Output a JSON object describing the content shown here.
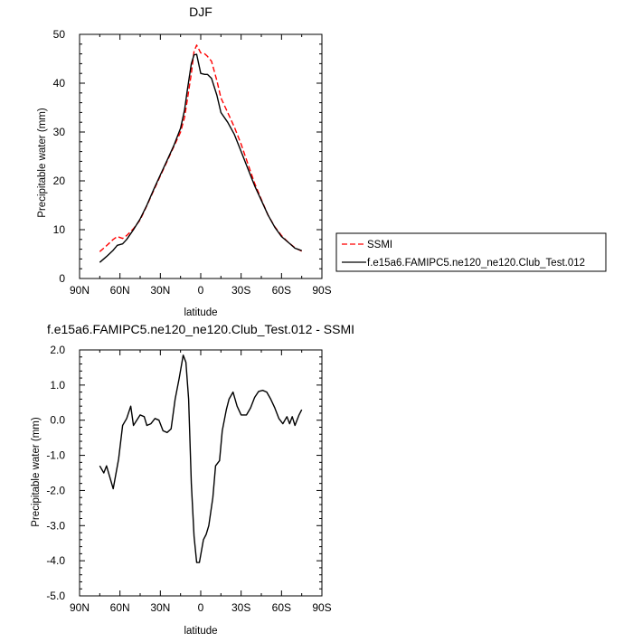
{
  "chart_data": [
    {
      "type": "line",
      "title": "DJF",
      "xlabel": "latitude",
      "ylabel": "Precipitable water (mm)",
      "xlim": [
        90,
        -90
      ],
      "ylim": [
        0,
        50
      ],
      "x_ticks": [
        90,
        60,
        30,
        0,
        -30,
        -60,
        -90
      ],
      "x_tick_labels": [
        "90N",
        "60N",
        "30N",
        "0",
        "30S",
        "60S",
        "90S"
      ],
      "y_ticks": [
        0,
        10,
        20,
        30,
        40,
        50
      ],
      "y_tick_labels": [
        "0",
        "10",
        "20",
        "30",
        "40",
        "50"
      ],
      "legend": {
        "placement": "outside-right",
        "entries": [
          {
            "label": "SSMI",
            "color": "#ff0000",
            "style": "dashed"
          },
          {
            "label": "f.e15a6.FAMIPC5.ne120_ne120.Club_Test.012",
            "color": "#000000",
            "style": "solid"
          }
        ]
      },
      "series": [
        {
          "name": "SSMI",
          "color": "#ff0000",
          "style": "dashed",
          "x": [
            75,
            70,
            65,
            62,
            58,
            55,
            50,
            45,
            40,
            35,
            30,
            25,
            20,
            15,
            12,
            10,
            7,
            5,
            3,
            0,
            -3,
            -5,
            -8,
            -12,
            -15,
            -20,
            -25,
            -30,
            -35,
            -40,
            -45,
            -50,
            -55,
            -60,
            -65,
            -70,
            -75
          ],
          "y": [
            5.5,
            6.7,
            8.0,
            8.6,
            8.2,
            8.8,
            10.2,
            12.0,
            14.9,
            18.0,
            21.0,
            24.0,
            27.0,
            30.0,
            33.0,
            36.5,
            42.0,
            46.5,
            47.8,
            46.2,
            46.0,
            45.5,
            44.5,
            40.5,
            37.0,
            34.0,
            31.0,
            27.5,
            23.5,
            19.5,
            16.2,
            13.0,
            10.6,
            8.8,
            7.4,
            6.3,
            5.6
          ]
        },
        {
          "name": "f.e15a6.FAMIPC5.ne120_ne120.Club_Test.012",
          "color": "#000000",
          "style": "solid",
          "x": [
            75,
            70,
            65,
            62,
            58,
            55,
            50,
            45,
            40,
            35,
            30,
            25,
            20,
            15,
            12,
            10,
            7,
            5,
            3,
            0,
            -3,
            -5,
            -8,
            -12,
            -15,
            -20,
            -25,
            -30,
            -35,
            -40,
            -45,
            -50,
            -55,
            -60,
            -65,
            -70,
            -75
          ],
          "y": [
            3.3,
            4.5,
            5.8,
            6.8,
            7.1,
            8.0,
            10.0,
            12.2,
            15.0,
            18.2,
            21.2,
            24.2,
            27.2,
            30.8,
            34.5,
            38.5,
            44.0,
            45.8,
            45.9,
            42.0,
            41.8,
            41.8,
            41.0,
            37.5,
            34.0,
            32.0,
            29.5,
            26.0,
            22.5,
            19.0,
            16.0,
            13.0,
            10.5,
            8.6,
            7.4,
            6.2,
            5.7
          ]
        }
      ]
    },
    {
      "type": "line",
      "title": "f.e15a6.FAMIPC5.ne120_ne120.Club_Test.012 - SSMI",
      "xlabel": "latitude",
      "ylabel": "Precipitable water (mm)",
      "xlim": [
        90,
        -90
      ],
      "ylim": [
        -5,
        2
      ],
      "x_ticks": [
        90,
        60,
        30,
        0,
        -30,
        -60,
        -90
      ],
      "x_tick_labels": [
        "90N",
        "60N",
        "30N",
        "0",
        "30S",
        "60S",
        "90S"
      ],
      "y_ticks": [
        2,
        1,
        0,
        -1,
        -2,
        -3,
        -4,
        -5
      ],
      "y_tick_labels": [
        "2.0",
        "1.0",
        "0.0",
        "-1.0",
        "-2.0",
        "-3.0",
        "-4.0",
        "-5.0"
      ],
      "series": [
        {
          "name": "f.e15a6.FAMIPC5.ne120_ne120.Club_Test.012 - SSMI",
          "color": "#000000",
          "style": "solid",
          "x": [
            75,
            72,
            70,
            65,
            61,
            58,
            55,
            52,
            50,
            45,
            42,
            40,
            37,
            34,
            31,
            28,
            25,
            22,
            19,
            16,
            13,
            11,
            9,
            7,
            5,
            3,
            1,
            -2,
            -4,
            -6,
            -9,
            -11,
            -14,
            -16,
            -19,
            -21,
            -24,
            -27,
            -30,
            -34,
            -37,
            -40,
            -43,
            -46,
            -49,
            -52,
            -55,
            -58,
            -61,
            -64,
            -66,
            -68,
            -70,
            -73,
            -75
          ],
          "y": [
            -1.3,
            -1.5,
            -1.3,
            -1.95,
            -1.1,
            -0.15,
            0.05,
            0.4,
            -0.15,
            0.15,
            0.1,
            -0.15,
            -0.1,
            0.05,
            0.0,
            -0.3,
            -0.35,
            -0.25,
            0.6,
            1.2,
            1.85,
            1.65,
            0.6,
            -1.8,
            -3.3,
            -4.05,
            -4.05,
            -3.4,
            -3.25,
            -3.0,
            -2.2,
            -1.3,
            -1.15,
            -0.3,
            0.3,
            0.6,
            0.8,
            0.4,
            0.15,
            0.15,
            0.35,
            0.65,
            0.82,
            0.85,
            0.8,
            0.6,
            0.35,
            0.05,
            -0.1,
            0.1,
            -0.1,
            0.1,
            -0.15,
            0.15,
            0.3
          ]
        }
      ]
    }
  ]
}
